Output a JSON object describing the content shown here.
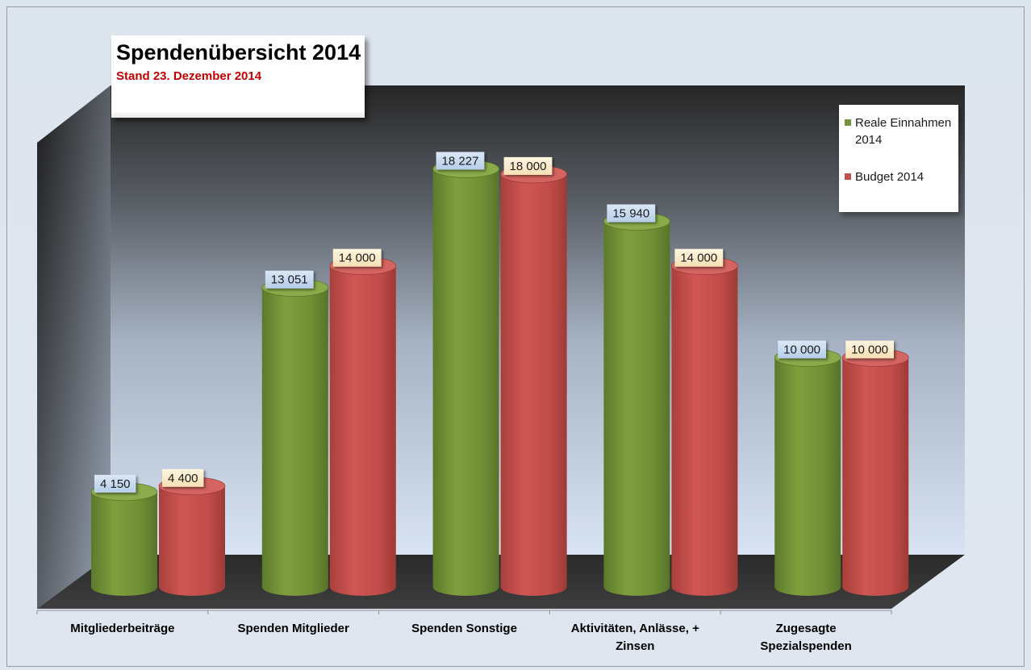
{
  "chart_data": {
    "type": "bar",
    "title": "Spendenübersicht 2014",
    "subtitle": "Stand 23. Dezember 2014",
    "categories": [
      "Mitgliederbeiträge",
      "Spenden Mitglieder",
      "Spenden Sonstige",
      "Aktivitäten, Anlässe, + Zinsen",
      "Zugesagte Spezialspenden"
    ],
    "category_lines": [
      [
        "Mitgliederbeiträge"
      ],
      [
        "Spenden Mitglieder"
      ],
      [
        "Spenden Sonstige"
      ],
      [
        "Aktivitäten, Anlässe, +",
        "Zinsen"
      ],
      [
        "Zugesagte",
        "Spezialspenden"
      ]
    ],
    "series": [
      {
        "name": "Reale Einnahmen 2014",
        "values": [
          4150,
          13051,
          18227,
          15940,
          10000
        ],
        "labels": [
          "4 150",
          "13 051",
          "18 227",
          "15 940",
          "10 000"
        ],
        "color": "#77933c",
        "label_bg": "#c6d9f1"
      },
      {
        "name": "Budget 2014",
        "values": [
          4400,
          14000,
          18000,
          14000,
          10000
        ],
        "labels": [
          "4 400",
          "14 000",
          "18 000",
          "14 000",
          "10 000"
        ],
        "color": "#c0504d",
        "label_bg": "#fce9c6"
      }
    ],
    "legend": {
      "position": "top-right",
      "items": [
        "Reale Einnahmen",
        "2014",
        "Budget 2014"
      ]
    },
    "grid": false,
    "shape": "cylinder"
  }
}
